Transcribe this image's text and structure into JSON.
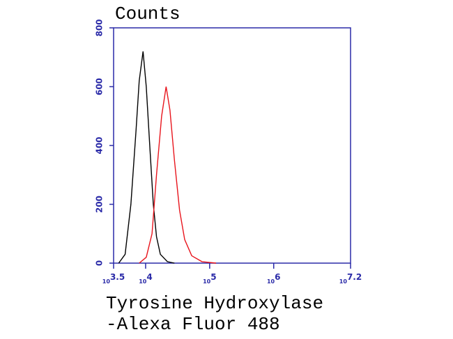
{
  "chart_data": {
    "type": "line",
    "title": "Counts",
    "x_label": [
      "Tyrosine Hydroxylase",
      "-Alexa Fluor 488"
    ],
    "xlim": [
      3.5,
      7.2
    ],
    "xticks": [
      3.5,
      4,
      5,
      6,
      7.2
    ],
    "xtick_base": "10",
    "ylim": [
      0,
      800
    ],
    "yticks": [
      0,
      200,
      400,
      600,
      800
    ],
    "axis_color": "#2a2aa8",
    "series": [
      {
        "color": "#000000",
        "x": [
          3.58,
          3.68,
          3.77,
          3.85,
          3.9,
          3.96,
          4.01,
          4.07,
          4.12,
          4.17,
          4.23,
          4.34,
          4.45
        ],
        "values": [
          0,
          30,
          200,
          450,
          620,
          720,
          600,
          380,
          200,
          90,
          30,
          5,
          0
        ]
      },
      {
        "color": "#e8141c",
        "x": [
          3.9,
          4.01,
          4.1,
          4.17,
          4.25,
          4.32,
          4.38,
          4.45,
          4.53,
          4.61,
          4.72,
          4.88,
          5.1
        ],
        "values": [
          0,
          20,
          100,
          300,
          500,
          600,
          520,
          350,
          180,
          80,
          25,
          5,
          0
        ]
      }
    ]
  }
}
